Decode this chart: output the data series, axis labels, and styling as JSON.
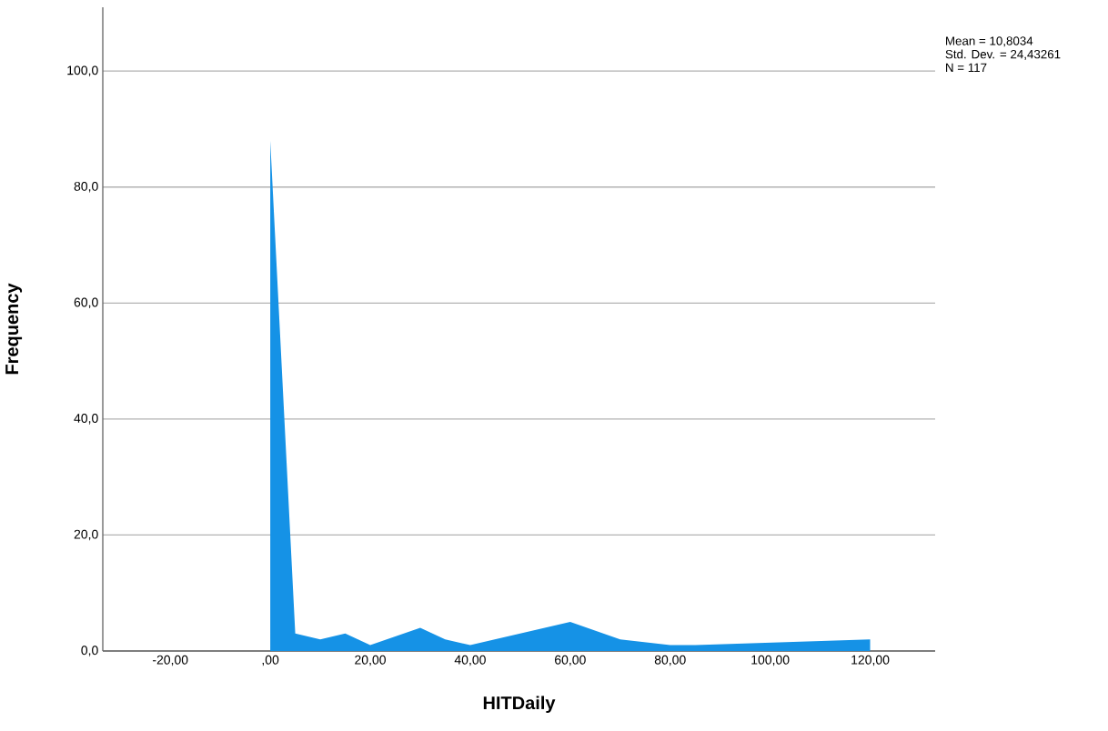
{
  "chart_data": {
    "type": "area",
    "xlabel": "HITDaily",
    "ylabel": "Frequency",
    "x": [
      0,
      5,
      10,
      15,
      20,
      30,
      35,
      40,
      60,
      70,
      80,
      85,
      120
    ],
    "values": [
      88,
      3,
      2,
      3,
      1,
      4,
      2,
      1,
      5,
      2,
      1,
      1,
      2
    ],
    "color": "#1592e6",
    "xlim": [
      -33.5,
      133
    ],
    "xticks": [
      {
        "value": -20,
        "label": "-20,00"
      },
      {
        "value": 0,
        "label": ",00"
      },
      {
        "value": 20,
        "label": "20,00"
      },
      {
        "value": 40,
        "label": "40,00"
      },
      {
        "value": 60,
        "label": "60,00"
      },
      {
        "value": 80,
        "label": "80,00"
      },
      {
        "value": 100,
        "label": "100,00"
      },
      {
        "value": 120,
        "label": "120,00"
      }
    ],
    "ylim": [
      0,
      111
    ],
    "yticks": [
      {
        "value": 0,
        "label": "0,0"
      },
      {
        "value": 20,
        "label": "20,0"
      },
      {
        "value": 40,
        "label": "40,0"
      },
      {
        "value": 60,
        "label": "60,0"
      },
      {
        "value": 80,
        "label": "80,0"
      },
      {
        "value": 100,
        "label": "100,0"
      }
    ],
    "grid": "y",
    "annotations": [
      "Mean = 10,8034",
      "Std. Dev. = 24,43261",
      "N = 117"
    ]
  }
}
